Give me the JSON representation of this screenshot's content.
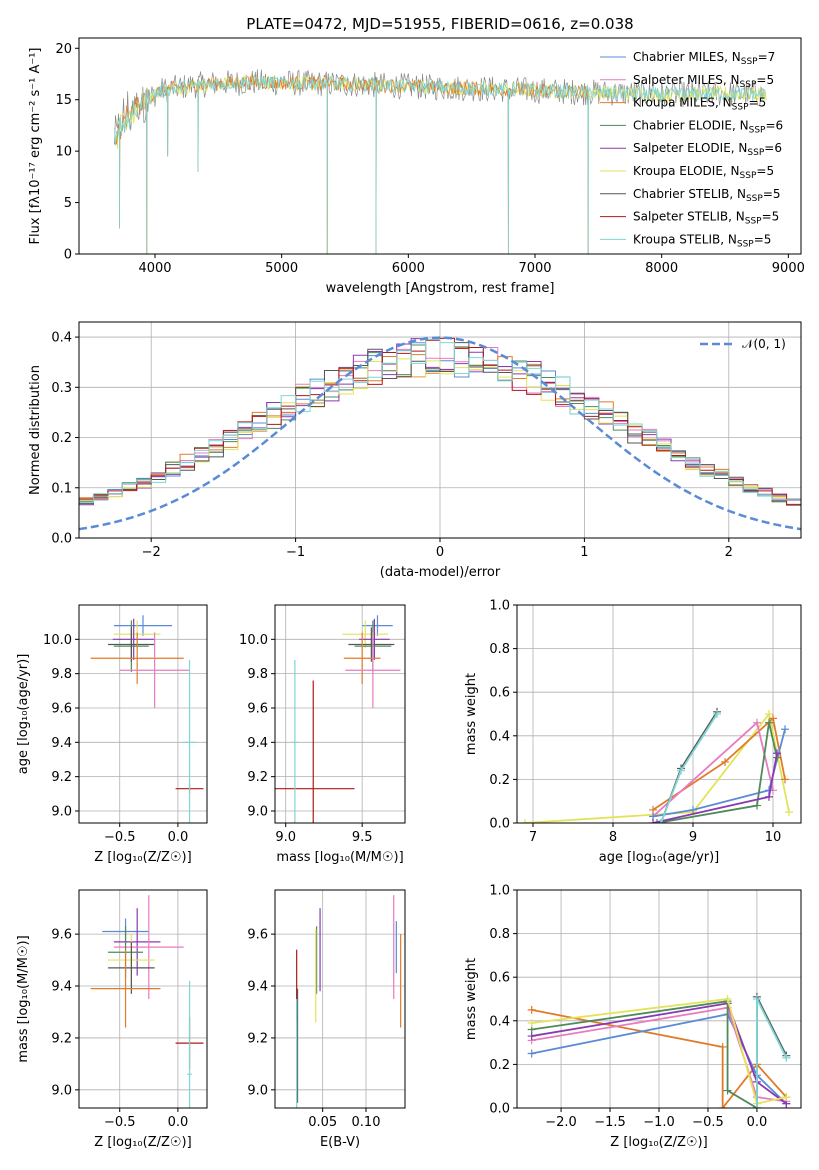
{
  "figure": {
    "title": "PLATE=0472, MJD=51955, FIBERID=0616, z=0.038"
  },
  "colors": {
    "Chabrier MILES": "#5b8bd6",
    "Salpeter MILES": "#e87bc0",
    "Kroupa MILES": "#e07b2a",
    "Chabrier ELODIE": "#4f8a5a",
    "Salpeter ELODIE": "#8a3ab0",
    "Kroupa ELODIE": "#e3e35a",
    "Chabrier STELIB": "#555555",
    "Salpeter STELIB": "#b01818",
    "Kroupa STELIB": "#7ed6d6",
    "data": "#888888"
  },
  "chart_data": [
    {
      "id": "spectrum",
      "type": "line",
      "xlabel": "wavelength [Angstrom, rest frame]",
      "ylabel": "Flux [fλ10⁻¹⁷ erg cm⁻² s⁻¹ A⁻¹]",
      "xlim": [
        3400,
        9100
      ],
      "ylim": [
        0,
        21
      ],
      "xticks": [
        4000,
        5000,
        6000,
        7000,
        8000,
        9000
      ],
      "yticks": [
        0,
        5,
        10,
        15,
        20
      ],
      "legend_position": "right",
      "legend": [
        {
          "name": "Chabrier MILES, N",
          "sub": "SSP",
          "suffix": "=7"
        },
        {
          "name": "Salpeter MILES, N",
          "sub": "SSP",
          "suffix": "=5"
        },
        {
          "name": "Kroupa MILES, N",
          "sub": "SSP",
          "suffix": "=5"
        },
        {
          "name": "Chabrier ELODIE, N",
          "sub": "SSP",
          "suffix": "=6"
        },
        {
          "name": "Salpeter ELODIE, N",
          "sub": "SSP",
          "suffix": "=6"
        },
        {
          "name": "Kroupa ELODIE, N",
          "sub": "SSP",
          "suffix": "=5"
        },
        {
          "name": "Chabrier STELIB, N",
          "sub": "SSP",
          "suffix": "=5"
        },
        {
          "name": "Salpeter STELIB, N",
          "sub": "SSP",
          "suffix": "=5"
        },
        {
          "name": "Kroupa STELIB, N",
          "sub": "SSP",
          "suffix": "=5"
        }
      ],
      "continuum": {
        "x": [
          3680,
          3750,
          3850,
          3950,
          4050,
          4150,
          4300,
          4500,
          4800,
          5200,
          5600,
          6000,
          6500,
          7000,
          7500,
          8000,
          8500,
          8830
        ],
        "y": [
          11.0,
          12.8,
          14.2,
          15.2,
          15.9,
          16.1,
          16.4,
          16.6,
          16.7,
          16.6,
          16.5,
          16.3,
          16.1,
          15.9,
          15.7,
          15.5,
          15.6,
          15.5
        ]
      },
      "dips": [
        {
          "x": 3935,
          "y": 0.0
        },
        {
          "x": 5360,
          "y": 0.0
        },
        {
          "x": 5745,
          "y": 0.0
        },
        {
          "x": 6790,
          "y": 0.0
        },
        {
          "x": 7420,
          "y": 0.0
        },
        {
          "x": 4340,
          "y": 8.0
        },
        {
          "x": 4100,
          "y": 9.5
        },
        {
          "x": 3720,
          "y": 2.5
        }
      ],
      "model_end": {
        "Kroupa MILES": 7420,
        "Salpeter MILES": 7420,
        "Chabrier MILES": 7420
      }
    },
    {
      "id": "residuals",
      "type": "histogram",
      "xlabel": "(data-model)/error",
      "ylabel": "Normed distribution",
      "xlim": [
        -2.5,
        2.5
      ],
      "ylim": [
        0,
        0.43
      ],
      "xticks": [
        -2,
        -1,
        0,
        1,
        2
      ],
      "yticks": [
        0.0,
        0.1,
        0.2,
        0.3,
        0.4
      ],
      "grid": true,
      "legend_position": "top-right",
      "reference_curve": {
        "name": "𝒩(0, 1)",
        "mean": 0,
        "sigma": 1
      }
    },
    {
      "id": "age_vs_Z",
      "type": "errorbar",
      "xlabel": "Z [log₁₀(Z/Z☉)]",
      "ylabel": "age  [log₁₀(age/yr)]",
      "xlim": [
        -0.85,
        0.25
      ],
      "ylim": [
        8.93,
        10.2
      ],
      "xticks": [
        -0.5,
        0.0
      ],
      "yticks": [
        9.0,
        9.2,
        9.4,
        9.6,
        9.8,
        10.0
      ],
      "grid": true,
      "points": [
        {
          "model": "Chabrier MILES",
          "x": -0.3,
          "xerr": 0.25,
          "y": 10.08,
          "yerr": 0.06
        },
        {
          "model": "Kroupa ELODIE",
          "x": -0.35,
          "xerr": 0.2,
          "y": 10.03,
          "yerr": 0.08
        },
        {
          "model": "Salpeter ELODIE",
          "x": -0.38,
          "xerr": 0.18,
          "y": 10.0,
          "yerr": 0.12
        },
        {
          "model": "Chabrier ELODIE",
          "x": -0.4,
          "xerr": 0.15,
          "y": 9.96,
          "yerr": 0.15
        },
        {
          "model": "Chabrier STELIB",
          "x": -0.4,
          "xerr": 0.2,
          "y": 9.97,
          "yerr": 0.1
        },
        {
          "model": "Kroupa MILES",
          "x": -0.35,
          "xerr": 0.4,
          "y": 9.89,
          "yerr": 0.15
        },
        {
          "model": "Salpeter MILES",
          "x": -0.2,
          "xerr": 0.3,
          "y": 9.82,
          "yerr": 0.22
        },
        {
          "model": "Salpeter STELIB",
          "x": 0.1,
          "xerr": 0.12,
          "y": 9.13,
          "yerr": 0.03
        },
        {
          "model": "Kroupa STELIB",
          "x": 0.1,
          "xerr": 0.05,
          "y": 9.4,
          "yerr": 0.48
        }
      ]
    },
    {
      "id": "age_vs_mass",
      "type": "errorbar",
      "xlabel": "mass [log₁₀(M/M☉)]",
      "ylabel": "",
      "xlim": [
        8.93,
        9.78
      ],
      "ylim": [
        8.93,
        10.2
      ],
      "xticks": [
        9.0,
        9.5
      ],
      "yticks": [
        9.0,
        9.2,
        9.4,
        9.6,
        9.8,
        10.0
      ],
      "grid": true,
      "points": [
        {
          "model": "Chabrier MILES",
          "x": 9.6,
          "xerr": 0.1,
          "y": 10.08,
          "yerr": 0.06
        },
        {
          "model": "Kroupa ELODIE",
          "x": 9.52,
          "xerr": 0.15,
          "y": 10.03,
          "yerr": 0.08
        },
        {
          "model": "Salpeter ELODIE",
          "x": 9.58,
          "xerr": 0.1,
          "y": 10.0,
          "yerr": 0.12
        },
        {
          "model": "Chabrier ELODIE",
          "x": 9.57,
          "xerr": 0.12,
          "y": 9.96,
          "yerr": 0.15
        },
        {
          "model": "Chabrier STELIB",
          "x": 9.56,
          "xerr": 0.15,
          "y": 9.97,
          "yerr": 0.1
        },
        {
          "model": "Kroupa MILES",
          "x": 9.5,
          "xerr": 0.12,
          "y": 9.89,
          "yerr": 0.15
        },
        {
          "model": "Salpeter MILES",
          "x": 9.57,
          "xerr": 0.18,
          "y": 9.82,
          "yerr": 0.22
        },
        {
          "model": "Salpeter STELIB",
          "x": 9.18,
          "xerr": 0.27,
          "y": 9.13,
          "yerr": 0.63
        },
        {
          "model": "Kroupa STELIB",
          "x": 9.06,
          "xerr": 0.02,
          "y": 9.4,
          "yerr": 0.48
        }
      ]
    },
    {
      "id": "weight_vs_age",
      "type": "line",
      "xlabel": "age  [log₁₀(age/yr)]",
      "ylabel": "mass weight",
      "xlim": [
        6.8,
        10.35
      ],
      "ylim": [
        0,
        1.0
      ],
      "xticks": [
        7,
        8,
        9,
        10
      ],
      "yticks": [
        0.0,
        0.2,
        0.4,
        0.6,
        0.8,
        1.0
      ],
      "grid": true,
      "series": [
        {
          "model": "Kroupa ELODIE",
          "x": [
            6.9,
            9.0,
            9.95,
            10.2
          ],
          "y": [
            0.0,
            0.05,
            0.5,
            0.05
          ]
        },
        {
          "model": "Kroupa MILES",
          "x": [
            8.5,
            9.4,
            10.0,
            10.15
          ],
          "y": [
            0.06,
            0.28,
            0.48,
            0.2
          ]
        },
        {
          "model": "Salpeter MILES",
          "x": [
            8.5,
            9.8,
            10.0
          ],
          "y": [
            0.03,
            0.46,
            0.15
          ]
        },
        {
          "model": "Chabrier MILES",
          "x": [
            8.5,
            9.0,
            9.95,
            10.15
          ],
          "y": [
            0.03,
            0.06,
            0.15,
            0.43
          ]
        },
        {
          "model": "Chabrier ELODIE",
          "x": [
            8.55,
            9.8,
            9.95,
            10.05
          ],
          "y": [
            0.0,
            0.08,
            0.46,
            0.3
          ]
        },
        {
          "model": "Salpeter ELODIE",
          "x": [
            8.5,
            9.95,
            10.05
          ],
          "y": [
            0.0,
            0.12,
            0.32
          ]
        },
        {
          "model": "Chabrier STELIB",
          "x": [
            8.6,
            8.85,
            9.3
          ],
          "y": [
            0.0,
            0.25,
            0.51
          ]
        },
        {
          "model": "Kroupa STELIB",
          "x": [
            8.6,
            8.85,
            9.3
          ],
          "y": [
            0.0,
            0.24,
            0.5
          ]
        }
      ]
    },
    {
      "id": "mass_vs_Z",
      "type": "errorbar",
      "xlabel": "Z [log₁₀(Z/Z☉)]",
      "ylabel": "mass [log₁₀(M/M☉)]",
      "xlim": [
        -0.85,
        0.25
      ],
      "ylim": [
        8.93,
        9.77
      ],
      "xticks": [
        -0.5,
        0.0
      ],
      "yticks": [
        9.0,
        9.2,
        9.4,
        9.6
      ],
      "grid": true,
      "points": [
        {
          "model": "Chabrier MILES",
          "x": -0.45,
          "xerr": 0.2,
          "y": 9.61,
          "yerr": 0.05
        },
        {
          "model": "Salpeter ELODIE",
          "x": -0.35,
          "xerr": 0.2,
          "y": 9.57,
          "yerr": 0.13
        },
        {
          "model": "Salpeter MILES",
          "x": -0.25,
          "xerr": 0.3,
          "y": 9.55,
          "yerr": 0.2
        },
        {
          "model": "Chabrier ELODIE",
          "x": -0.45,
          "xerr": 0.15,
          "y": 9.53,
          "yerr": 0.1
        },
        {
          "model": "Kroupa ELODIE",
          "x": -0.4,
          "xerr": 0.2,
          "y": 9.5,
          "yerr": 0.1
        },
        {
          "model": "Chabrier STELIB",
          "x": -0.4,
          "xerr": 0.2,
          "y": 9.47,
          "yerr": 0.1
        },
        {
          "model": "Kroupa MILES",
          "x": -0.45,
          "xerr": 0.3,
          "y": 9.39,
          "yerr": 0.15
        },
        {
          "model": "Salpeter STELIB",
          "x": 0.1,
          "xerr": 0.12,
          "y": 9.18,
          "yerr": 0.1
        },
        {
          "model": "Kroupa STELIB",
          "x": 0.1,
          "xerr": 0.02,
          "y": 9.06,
          "yerr": 0.36
        }
      ]
    },
    {
      "id": "mass_vs_EBV",
      "type": "errorbar",
      "xlabel": "E(B-V)",
      "ylabel": "",
      "xlim": [
        -0.005,
        0.145
      ],
      "ylim": [
        8.93,
        9.77
      ],
      "xticks": [
        0.05,
        0.1
      ],
      "yticks": [
        9.0,
        9.2,
        9.4,
        9.6
      ],
      "grid": true,
      "points": [
        {
          "model": "Salpeter ELODIE",
          "x": 0.047,
          "y": 9.54,
          "yerr": 0.16
        },
        {
          "model": "Chabrier ELODIE",
          "x": 0.043,
          "y": 9.5,
          "yerr": 0.13
        },
        {
          "model": "Kroupa ELODIE",
          "x": 0.042,
          "y": 9.44,
          "yerr": 0.18
        },
        {
          "model": "Salpeter MILES",
          "x": 0.132,
          "y": 9.55,
          "yerr": 0.2
        },
        {
          "model": "Chabrier MILES",
          "x": 0.135,
          "y": 9.55,
          "yerr": 0.1
        },
        {
          "model": "Kroupa MILES",
          "x": 0.14,
          "y": 9.42,
          "yerr": 0.18
        },
        {
          "model": "Salpeter STELIB",
          "x": 0.02,
          "y": 9.4,
          "yerr": 0.14
        },
        {
          "model": "Chabrier STELIB",
          "x": 0.021,
          "y": 9.17,
          "yerr": 0.22
        },
        {
          "model": "Kroupa STELIB",
          "x": 0.02,
          "y": 9.1,
          "yerr": 0.25
        }
      ]
    },
    {
      "id": "weight_vs_Z",
      "type": "line",
      "xlabel": "Z [log₁₀(Z/Z☉)]",
      "ylabel": "mass weight",
      "xlim": [
        -2.45,
        0.45
      ],
      "ylim": [
        0,
        1.0
      ],
      "xticks": [
        -2.0,
        -1.5,
        -1.0,
        -0.5,
        0.0
      ],
      "yticks": [
        0.0,
        0.2,
        0.4,
        0.6,
        0.8,
        1.0
      ],
      "grid": true,
      "series": [
        {
          "model": "Kroupa MILES",
          "x": [
            -2.3,
            -0.35,
            -0.35,
            0.0,
            0.3
          ],
          "y": [
            0.45,
            0.28,
            0.0,
            0.2,
            0.05
          ]
        },
        {
          "model": "Chabrier MILES",
          "x": [
            -2.3,
            -0.3,
            0.0,
            0.3
          ],
          "y": [
            0.25,
            0.43,
            0.15,
            0.02
          ]
        },
        {
          "model": "Salpeter MILES",
          "x": [
            -2.3,
            -0.3,
            0.0,
            0.3
          ],
          "y": [
            0.31,
            0.46,
            0.05,
            0.03
          ]
        },
        {
          "model": "Salpeter ELODIE",
          "x": [
            -2.3,
            -0.3,
            0.0,
            0.3
          ],
          "y": [
            0.33,
            0.48,
            0.12,
            0.02
          ]
        },
        {
          "model": "Chabrier ELODIE",
          "x": [
            -2.3,
            -0.3,
            -0.3,
            0.0
          ],
          "y": [
            0.36,
            0.49,
            0.08,
            0.0
          ]
        },
        {
          "model": "Kroupa ELODIE",
          "x": [
            -2.3,
            -0.3,
            0.0,
            0.3
          ],
          "y": [
            0.39,
            0.5,
            0.02,
            0.05
          ]
        },
        {
          "model": "Chabrier STELIB",
          "x": [
            0.0,
            0.0,
            0.3
          ],
          "y": [
            0.0,
            0.51,
            0.24
          ]
        },
        {
          "model": "Kroupa STELIB",
          "x": [
            0.0,
            0.0,
            0.3
          ],
          "y": [
            0.0,
            0.5,
            0.23
          ]
        }
      ]
    }
  ]
}
